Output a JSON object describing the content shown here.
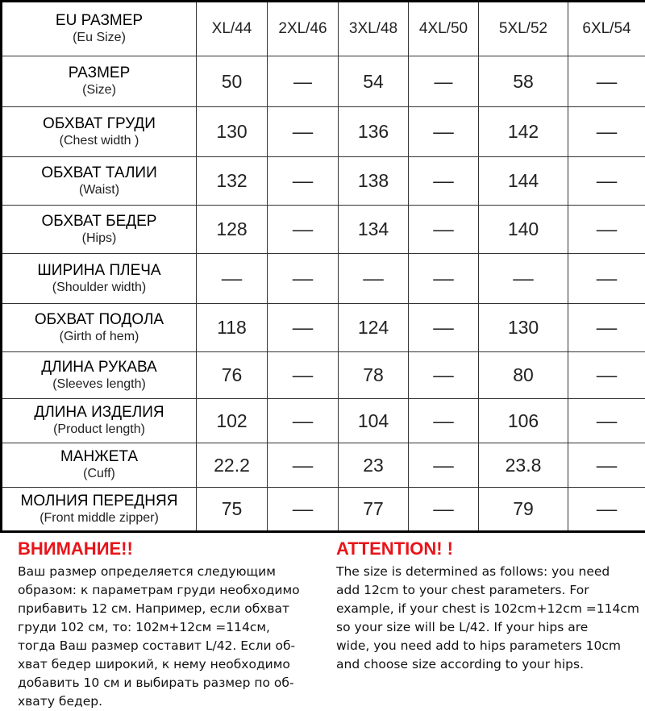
{
  "table": {
    "header": {
      "label": "EU РАЗМЕР",
      "sublabel": "(Eu Size)",
      "columns": [
        "XL/44",
        "2XL/46",
        "3XL/48",
        "4XL/50",
        "5XL/52",
        "6XL/54"
      ]
    },
    "rows": [
      {
        "label": "РАЗМЕР",
        "sublabel": "(Size)",
        "cells": [
          "50",
          "—",
          "54",
          "—",
          "58",
          "––"
        ]
      },
      {
        "label": "ОБХВАТ ГРУДИ",
        "sublabel": "(Chest width )",
        "cells": [
          "130",
          "––",
          "136",
          "––",
          "142",
          "––"
        ]
      },
      {
        "label": "ОБХВАТ ТАЛИИ",
        "sublabel": "(Waist)",
        "cells": [
          "132",
          "––",
          "138",
          "––",
          "144",
          "––"
        ]
      },
      {
        "label": "ОБХВАТ БЕДЕР",
        "sublabel": "(Hips)",
        "cells": [
          "128",
          "––",
          "134",
          "––",
          "140",
          "––"
        ]
      },
      {
        "label": "ШИРИНА ПЛЕЧА",
        "sublabel": "(Shoulder width)",
        "cells": [
          "––",
          "––",
          "––",
          "––",
          "––",
          "––"
        ]
      },
      {
        "label": "ОБХВАТ ПОДОЛА",
        "sublabel": "(Girth of hem)",
        "cells": [
          "118",
          "––",
          "124",
          "––",
          "130",
          "––"
        ]
      },
      {
        "label": "ДЛИНА РУКАВА",
        "sublabel": "(Sleeves length)",
        "cells": [
          "76",
          "––",
          "78",
          "––",
          "80",
          "––"
        ]
      },
      {
        "label": "ДЛИНА ИЗДЕЛИЯ",
        "sublabel": "(Product length)",
        "cells": [
          "102",
          "––",
          "104",
          "––",
          "106",
          "––"
        ]
      },
      {
        "label": "МАНЖЕТА",
        "sublabel": "(Cuff)",
        "cells": [
          "22.2",
          "––",
          "23",
          "––",
          "23.8",
          "––"
        ]
      },
      {
        "label": "МОЛНИЯ ПЕРЕДНЯЯ",
        "sublabel": "(Front middle zipper)",
        "cells": [
          "75",
          "––",
          "77",
          "––",
          "79",
          "––"
        ]
      }
    ]
  },
  "notes": [
    {
      "title": "ВНИМАНИЕ!!",
      "lines": [
        "Ваш размер определяется следующим",
        "образом: к параметрам груди необходимо",
        "прибавить 12 см. Например, если обхват",
        "груди  102 см, то: 102м+12см =114см,",
        "тогда Ваш размер составит L/42. Если об-",
        "хват бедер широкий, к нему необходимо",
        "добавить 10 см и выбирать размер по об-",
        "хвату бедер."
      ]
    },
    {
      "title": "ATTENTION! !",
      "lines": [
        "The size is determined as follows: you need",
        "add 12cm to your chest parameters. For",
        "example, if your chest is 102cm+12cm =114cm",
        "so your size will be L/42. If your hips are",
        "wide, you need add to hips parameters 10cm",
        "and choose size according to your hips."
      ]
    }
  ]
}
